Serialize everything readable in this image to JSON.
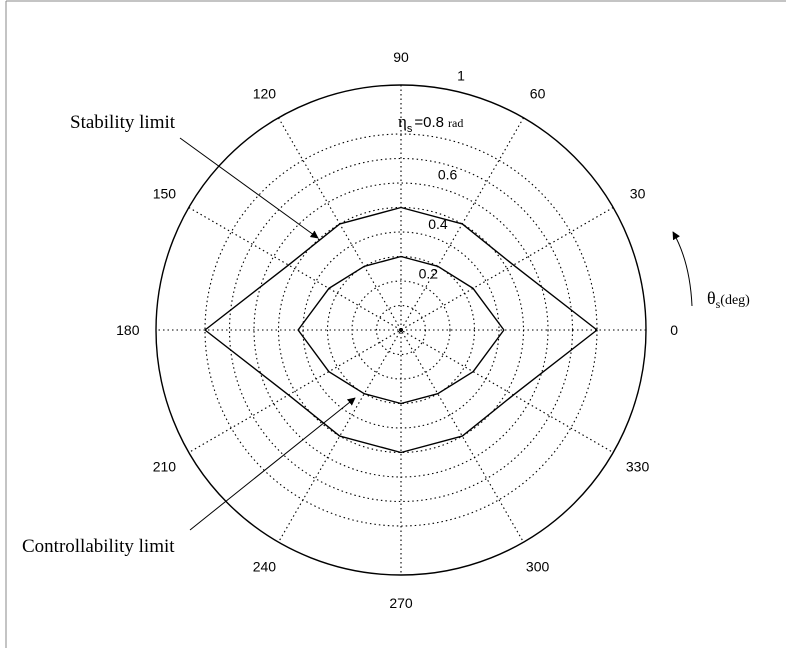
{
  "chart_data": {
    "type": "polar",
    "theta_unit": "deg",
    "radial_range": [
      0,
      1
    ],
    "angle_ticks": [
      "0",
      "30",
      "60",
      "90",
      "120",
      "150",
      "180",
      "210",
      "240",
      "270",
      "300",
      "330"
    ],
    "radius_ticks": [
      "0.2",
      "0.4",
      "0.6",
      "1"
    ],
    "radius_tick_values": [
      0.2,
      0.4,
      0.6,
      1.0
    ],
    "grid_circle_values": [
      0.1,
      0.2,
      0.3,
      0.4,
      0.5,
      0.6,
      0.7,
      0.8
    ],
    "eta_label": "η",
    "eta_subscript": "s",
    "eta_value_text": "=0.8",
    "eta_unit": "rad",
    "theta_label": "θ",
    "theta_subscript": "s",
    "theta_unit_label": "(deg)",
    "series": [
      {
        "name": "Stability limit",
        "theta_deg": [
          0,
          30,
          60,
          90,
          120,
          150,
          180,
          210,
          240,
          270,
          300,
          330
        ],
        "r": [
          0.8,
          0.53,
          0.5,
          0.5,
          0.5,
          0.53,
          0.8,
          0.53,
          0.5,
          0.5,
          0.5,
          0.53
        ]
      },
      {
        "name": "Controllability limit",
        "theta_deg": [
          0,
          30,
          60,
          90,
          120,
          150,
          180,
          210,
          240,
          270,
          300,
          330
        ],
        "r": [
          0.42,
          0.34,
          0.3,
          0.3,
          0.3,
          0.34,
          0.42,
          0.34,
          0.3,
          0.3,
          0.3,
          0.34
        ]
      }
    ],
    "annotations": [
      "Stability limit",
      "Controllability limit"
    ]
  }
}
